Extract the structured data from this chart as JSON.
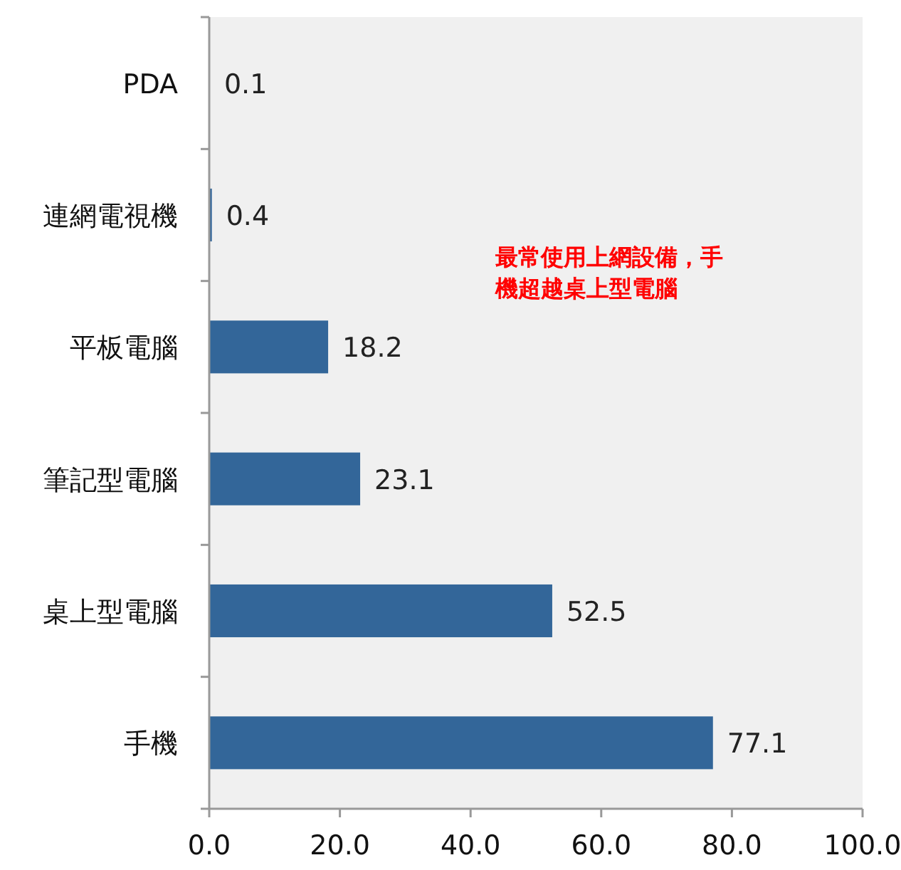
{
  "chart_data": {
    "type": "bar",
    "orientation": "horizontal",
    "categories": [
      "PDA",
      "連網電視機",
      "平板電腦",
      "筆記型電腦",
      "桌上型電腦",
      "手機"
    ],
    "values": [
      0.1,
      0.4,
      18.2,
      23.1,
      52.5,
      77.1
    ],
    "color": "#336699",
    "xlim": [
      0,
      100
    ],
    "xticks": [
      {
        "value": 0,
        "label": "0.0"
      },
      {
        "value": 20,
        "label": "20.0"
      },
      {
        "value": 40,
        "label": "40.0"
      },
      {
        "value": 60,
        "label": "60.0"
      },
      {
        "value": 80,
        "label": "80.0"
      },
      {
        "value": 100,
        "label": "100.0"
      }
    ],
    "data_labels": true,
    "annotations": [
      "最常使用上網設備，手機超越桌上型電腦"
    ]
  }
}
